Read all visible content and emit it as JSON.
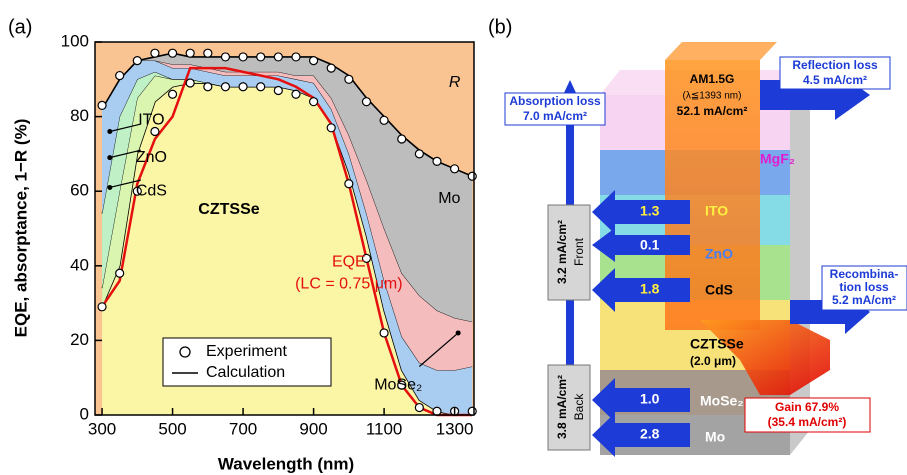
{
  "chart_data": {
    "type": "stacked-area",
    "panel_label": "(a)",
    "x_label": "Wavelength (nm)",
    "y_label": "EQE, absorptance, 1−R (%)",
    "xlim": [
      280,
      1355
    ],
    "ylim": [
      0,
      100
    ],
    "xticks": [
      300,
      500,
      700,
      900,
      1100,
      1300
    ],
    "yticks": [
      0,
      20,
      40,
      60,
      80,
      100
    ],
    "x": [
      300,
      350,
      400,
      450,
      500,
      550,
      600,
      650,
      700,
      750,
      800,
      850,
      900,
      950,
      1000,
      1050,
      1100,
      1150,
      1200,
      1250,
      1300,
      1350
    ],
    "background_color": "#f9c392",
    "series": [
      {
        "name": "CZTSSe",
        "color": "#fbf6a6",
        "values": [
          29,
          40,
          70,
          84,
          88,
          89,
          89,
          88,
          88,
          88,
          88,
          87,
          85,
          78,
          65,
          48,
          28,
          12,
          4,
          1,
          0,
          0
        ]
      },
      {
        "name": "CdS",
        "color": "#d9f5b0",
        "values": [
          5,
          20,
          15,
          7,
          2,
          1,
          0,
          0,
          0,
          0,
          0,
          0,
          0,
          0,
          0,
          0,
          0,
          0,
          0,
          0,
          0,
          0
        ]
      },
      {
        "name": "ZnO",
        "color": "#bff0c6",
        "values": [
          20,
          20,
          5,
          1,
          0,
          0,
          0,
          0,
          0,
          0,
          0,
          0,
          0,
          0,
          0,
          0,
          0,
          0,
          0,
          0,
          0,
          0
        ]
      },
      {
        "name": "ITO",
        "color": "#a9cdf0",
        "values": [
          28,
          10,
          5,
          3,
          3,
          3,
          3,
          3,
          3,
          3,
          3,
          3,
          4,
          4,
          5,
          6,
          8,
          9,
          10,
          11,
          12,
          13
        ]
      },
      {
        "name": "MoSe₂",
        "color": "#f4bcbc",
        "values": [
          0,
          0,
          0,
          0,
          1,
          1,
          1,
          1,
          1,
          1,
          1,
          1,
          2,
          3,
          5,
          9,
          14,
          17,
          18,
          16,
          14,
          12
        ]
      },
      {
        "name": "Mo",
        "color": "#bdbdbd",
        "values": [
          0,
          0,
          0,
          1,
          3,
          2,
          3,
          4,
          4,
          4,
          4,
          5,
          5,
          9,
          16,
          22,
          30,
          37,
          39,
          40,
          40,
          39
        ]
      }
    ],
    "top_region_label": "R",
    "eqe_calculation": {
      "color": "#e41010",
      "values": [
        29,
        36,
        62,
        74,
        80,
        93,
        93,
        93,
        92,
        91,
        90,
        88,
        85,
        78,
        62,
        42,
        22,
        8,
        2,
        0,
        0,
        0
      ]
    },
    "eqe_experiment": {
      "values": [
        29,
        38,
        60,
        76,
        86,
        89,
        88,
        88,
        88,
        88,
        87,
        86,
        84,
        77,
        62,
        42,
        22,
        8,
        2,
        1,
        1,
        1
      ]
    },
    "reflectance_experiment": {
      "values": [
        83,
        91,
        95,
        97,
        97,
        97,
        97,
        96,
        96,
        96,
        96,
        96,
        95,
        93,
        90,
        84,
        79,
        74,
        70,
        68,
        66,
        64
      ]
    },
    "eqe_label": "EQE",
    "eqe_note": "(LC = 0.75 μm)",
    "legend": [
      "Experiment",
      "Calculation"
    ]
  },
  "diagram": {
    "panel_label": "(b)",
    "absorption_loss": [
      "Absorption loss",
      "7.0 mA/cm²"
    ],
    "source": [
      "AM1.5G",
      "(λ≦1393 nm)",
      "52.1 mA/cm²"
    ],
    "reflection_loss": [
      "Reflection loss",
      "4.5 mA/cm²"
    ],
    "layers": [
      "MgF₂",
      "ITO",
      "ZnO",
      "CdS",
      "CZTSSe",
      "(2.0 μm)",
      "MoSe₂",
      "Mo"
    ],
    "losses": [
      "1.3",
      "0.1",
      "1.8",
      "1.0",
      "2.8"
    ],
    "front": [
      "Front",
      "3.2 mA/cm²"
    ],
    "back": [
      "Back",
      "3.8 mA/cm²"
    ],
    "recombination_loss": [
      "Recombina-",
      "tion loss",
      "5.2 mA/cm²"
    ],
    "gain": [
      "Gain 67.9%",
      "(35.4 mA/cm²)"
    ]
  }
}
